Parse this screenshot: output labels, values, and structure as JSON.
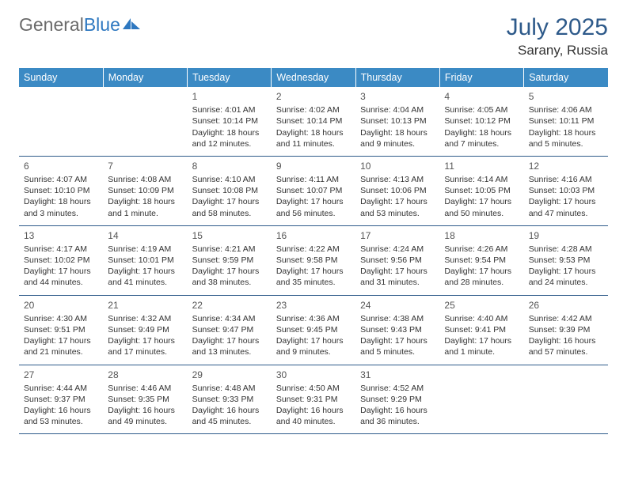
{
  "logo": {
    "part1": "General",
    "part2": "Blue"
  },
  "title": "July 2025",
  "location": "Sarany, Russia",
  "colors": {
    "header_bg": "#3b8ac4",
    "header_text": "#ffffff",
    "title_color": "#2e5a8a",
    "logo_gray": "#6b6b6b",
    "logo_blue": "#2e78c0",
    "cell_border": "#2e5a8a",
    "body_text": "#333333"
  },
  "weekdays": [
    "Sunday",
    "Monday",
    "Tuesday",
    "Wednesday",
    "Thursday",
    "Friday",
    "Saturday"
  ],
  "weeks": [
    [
      null,
      null,
      {
        "d": "1",
        "sr": "Sunrise: 4:01 AM",
        "ss": "Sunset: 10:14 PM",
        "dl": "Daylight: 18 hours and 12 minutes."
      },
      {
        "d": "2",
        "sr": "Sunrise: 4:02 AM",
        "ss": "Sunset: 10:14 PM",
        "dl": "Daylight: 18 hours and 11 minutes."
      },
      {
        "d": "3",
        "sr": "Sunrise: 4:04 AM",
        "ss": "Sunset: 10:13 PM",
        "dl": "Daylight: 18 hours and 9 minutes."
      },
      {
        "d": "4",
        "sr": "Sunrise: 4:05 AM",
        "ss": "Sunset: 10:12 PM",
        "dl": "Daylight: 18 hours and 7 minutes."
      },
      {
        "d": "5",
        "sr": "Sunrise: 4:06 AM",
        "ss": "Sunset: 10:11 PM",
        "dl": "Daylight: 18 hours and 5 minutes."
      }
    ],
    [
      {
        "d": "6",
        "sr": "Sunrise: 4:07 AM",
        "ss": "Sunset: 10:10 PM",
        "dl": "Daylight: 18 hours and 3 minutes."
      },
      {
        "d": "7",
        "sr": "Sunrise: 4:08 AM",
        "ss": "Sunset: 10:09 PM",
        "dl": "Daylight: 18 hours and 1 minute."
      },
      {
        "d": "8",
        "sr": "Sunrise: 4:10 AM",
        "ss": "Sunset: 10:08 PM",
        "dl": "Daylight: 17 hours and 58 minutes."
      },
      {
        "d": "9",
        "sr": "Sunrise: 4:11 AM",
        "ss": "Sunset: 10:07 PM",
        "dl": "Daylight: 17 hours and 56 minutes."
      },
      {
        "d": "10",
        "sr": "Sunrise: 4:13 AM",
        "ss": "Sunset: 10:06 PM",
        "dl": "Daylight: 17 hours and 53 minutes."
      },
      {
        "d": "11",
        "sr": "Sunrise: 4:14 AM",
        "ss": "Sunset: 10:05 PM",
        "dl": "Daylight: 17 hours and 50 minutes."
      },
      {
        "d": "12",
        "sr": "Sunrise: 4:16 AM",
        "ss": "Sunset: 10:03 PM",
        "dl": "Daylight: 17 hours and 47 minutes."
      }
    ],
    [
      {
        "d": "13",
        "sr": "Sunrise: 4:17 AM",
        "ss": "Sunset: 10:02 PM",
        "dl": "Daylight: 17 hours and 44 minutes."
      },
      {
        "d": "14",
        "sr": "Sunrise: 4:19 AM",
        "ss": "Sunset: 10:01 PM",
        "dl": "Daylight: 17 hours and 41 minutes."
      },
      {
        "d": "15",
        "sr": "Sunrise: 4:21 AM",
        "ss": "Sunset: 9:59 PM",
        "dl": "Daylight: 17 hours and 38 minutes."
      },
      {
        "d": "16",
        "sr": "Sunrise: 4:22 AM",
        "ss": "Sunset: 9:58 PM",
        "dl": "Daylight: 17 hours and 35 minutes."
      },
      {
        "d": "17",
        "sr": "Sunrise: 4:24 AM",
        "ss": "Sunset: 9:56 PM",
        "dl": "Daylight: 17 hours and 31 minutes."
      },
      {
        "d": "18",
        "sr": "Sunrise: 4:26 AM",
        "ss": "Sunset: 9:54 PM",
        "dl": "Daylight: 17 hours and 28 minutes."
      },
      {
        "d": "19",
        "sr": "Sunrise: 4:28 AM",
        "ss": "Sunset: 9:53 PM",
        "dl": "Daylight: 17 hours and 24 minutes."
      }
    ],
    [
      {
        "d": "20",
        "sr": "Sunrise: 4:30 AM",
        "ss": "Sunset: 9:51 PM",
        "dl": "Daylight: 17 hours and 21 minutes."
      },
      {
        "d": "21",
        "sr": "Sunrise: 4:32 AM",
        "ss": "Sunset: 9:49 PM",
        "dl": "Daylight: 17 hours and 17 minutes."
      },
      {
        "d": "22",
        "sr": "Sunrise: 4:34 AM",
        "ss": "Sunset: 9:47 PM",
        "dl": "Daylight: 17 hours and 13 minutes."
      },
      {
        "d": "23",
        "sr": "Sunrise: 4:36 AM",
        "ss": "Sunset: 9:45 PM",
        "dl": "Daylight: 17 hours and 9 minutes."
      },
      {
        "d": "24",
        "sr": "Sunrise: 4:38 AM",
        "ss": "Sunset: 9:43 PM",
        "dl": "Daylight: 17 hours and 5 minutes."
      },
      {
        "d": "25",
        "sr": "Sunrise: 4:40 AM",
        "ss": "Sunset: 9:41 PM",
        "dl": "Daylight: 17 hours and 1 minute."
      },
      {
        "d": "26",
        "sr": "Sunrise: 4:42 AM",
        "ss": "Sunset: 9:39 PM",
        "dl": "Daylight: 16 hours and 57 minutes."
      }
    ],
    [
      {
        "d": "27",
        "sr": "Sunrise: 4:44 AM",
        "ss": "Sunset: 9:37 PM",
        "dl": "Daylight: 16 hours and 53 minutes."
      },
      {
        "d": "28",
        "sr": "Sunrise: 4:46 AM",
        "ss": "Sunset: 9:35 PM",
        "dl": "Daylight: 16 hours and 49 minutes."
      },
      {
        "d": "29",
        "sr": "Sunrise: 4:48 AM",
        "ss": "Sunset: 9:33 PM",
        "dl": "Daylight: 16 hours and 45 minutes."
      },
      {
        "d": "30",
        "sr": "Sunrise: 4:50 AM",
        "ss": "Sunset: 9:31 PM",
        "dl": "Daylight: 16 hours and 40 minutes."
      },
      {
        "d": "31",
        "sr": "Sunrise: 4:52 AM",
        "ss": "Sunset: 9:29 PM",
        "dl": "Daylight: 16 hours and 36 minutes."
      },
      null,
      null
    ]
  ]
}
